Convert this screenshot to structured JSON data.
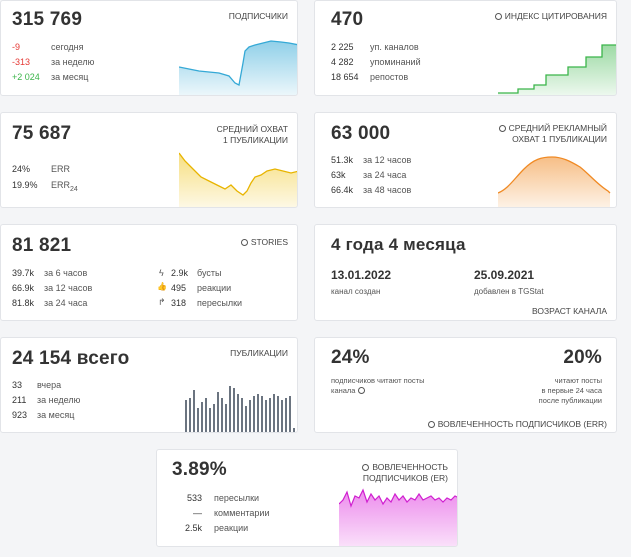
{
  "subscribers": {
    "value": "315 769",
    "label": "ПОДПИСЧИКИ",
    "rows": [
      {
        "value": "-9",
        "text": "сегодня",
        "tone": "red"
      },
      {
        "value": "-313",
        "text": "за неделю",
        "tone": "red"
      },
      {
        "value": "+2 024",
        "text": "за месяц",
        "tone": "green"
      }
    ],
    "color": "#35a9d6"
  },
  "citation": {
    "value": "470",
    "label": "ИНДЕКС ЦИТИРОВАНИЯ",
    "rows": [
      {
        "value": "2 225",
        "text": "уп. каналов"
      },
      {
        "value": "4 282",
        "text": "упоминаний"
      },
      {
        "value": "18 654",
        "text": "репостов"
      }
    ],
    "color": "#3bb54a"
  },
  "avg_reach": {
    "value": "75 687",
    "label_line1": "СРЕДНИЙ ОХВАТ",
    "label_line2": "1 ПУБЛИКАЦИИ",
    "rows": [
      {
        "value": "24%",
        "text": "ERR"
      },
      {
        "value": "19.9%",
        "text": "ERR",
        "sub": "24"
      }
    ],
    "color": "#f0c419"
  },
  "ad_reach": {
    "value": "63 000",
    "label_line1": "СРЕДНИЙ РЕКЛАМНЫЙ",
    "label_line2": "ОХВАТ 1 ПУБЛИКАЦИИ",
    "rows": [
      {
        "value": "51.3k",
        "text": "за 12 часов"
      },
      {
        "value": "63k",
        "text": "за 24 часа"
      },
      {
        "value": "66.4k",
        "text": "за 48 часов"
      }
    ],
    "color": "#f08a24"
  },
  "stories": {
    "value": "81 821",
    "label": "STORIES",
    "rows_left": [
      {
        "value": "39.7k",
        "text": "за 6 часов"
      },
      {
        "value": "66.9k",
        "text": "за 12 часов"
      },
      {
        "value": "81.8k",
        "text": "за 24 часа"
      }
    ],
    "rows_right": [
      {
        "icon": "boost-icon",
        "glyph": "ϟ",
        "value": "2.9k",
        "text": "бусты"
      },
      {
        "icon": "thumbs-up-icon",
        "glyph": "👍",
        "value": "495",
        "text": "реакции"
      },
      {
        "icon": "share-icon",
        "glyph": "↱",
        "value": "318",
        "text": "пересылки"
      }
    ]
  },
  "channel_age": {
    "value": "4 года 4 месяца",
    "created_date": "13.01.2022",
    "created_label": "канал создан",
    "added_date": "25.09.2021",
    "added_label": "добавлен в TGStat",
    "label": "ВОЗРАСТ КАНАЛА"
  },
  "publications": {
    "value": "24 154 всего",
    "label": "ПУБЛИКАЦИИ",
    "rows": [
      {
        "value": "33",
        "text": "вчера"
      },
      {
        "value": "211",
        "text": "за неделю"
      },
      {
        "value": "923",
        "text": "за месяц"
      }
    ],
    "color": "#6b7480"
  },
  "err": {
    "left_value": "24%",
    "left_text_line1": "подписчиков читают посты",
    "left_text_line2": "канала",
    "right_value": "20%",
    "right_text_line1": "читают посты",
    "right_text_line2": "в первые 24 часа",
    "right_text_line3": "после публикации",
    "label": "ВОВЛЕЧЕННОСТЬ ПОДПИСЧИКОВ (ERR)"
  },
  "er": {
    "value": "3.89%",
    "label_line1": "ВОВЛЕЧЕННОСТЬ",
    "label_line2": "ПОДПИСЧИКОВ (ER)",
    "rows": [
      {
        "value": "533",
        "text": "пересылки"
      },
      {
        "value": "—",
        "text": "комментарии"
      },
      {
        "value": "2.5k",
        "text": "реакции"
      }
    ],
    "color": "#e040e0"
  }
}
